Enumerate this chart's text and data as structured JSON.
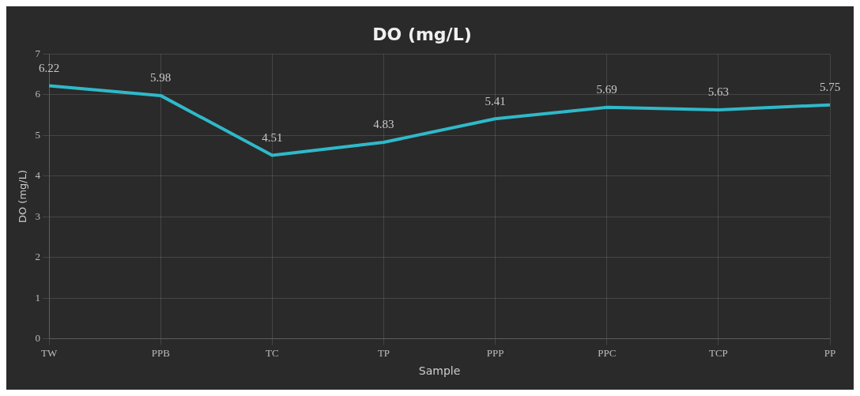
{
  "chart_data": {
    "type": "line",
    "title": "DO (mg/L)",
    "xlabel": "Sample",
    "ylabel": "DO (mg/L)",
    "categories": [
      "TW",
      "PPB",
      "TC",
      "TP",
      "PPP",
      "PPC",
      "TCP",
      "PP"
    ],
    "series": [
      {
        "color": "#2fb9c9",
        "values": [
          6.22,
          5.98,
          4.51,
          4.83,
          5.41,
          5.69,
          5.63,
          5.75
        ]
      }
    ],
    "ylim": [
      0,
      7
    ],
    "yticks": [
      0,
      1,
      2,
      3,
      4,
      5,
      6,
      7
    ],
    "grid": true,
    "legend": false,
    "marker": "none",
    "line_style": "solid",
    "data_labels": true
  }
}
